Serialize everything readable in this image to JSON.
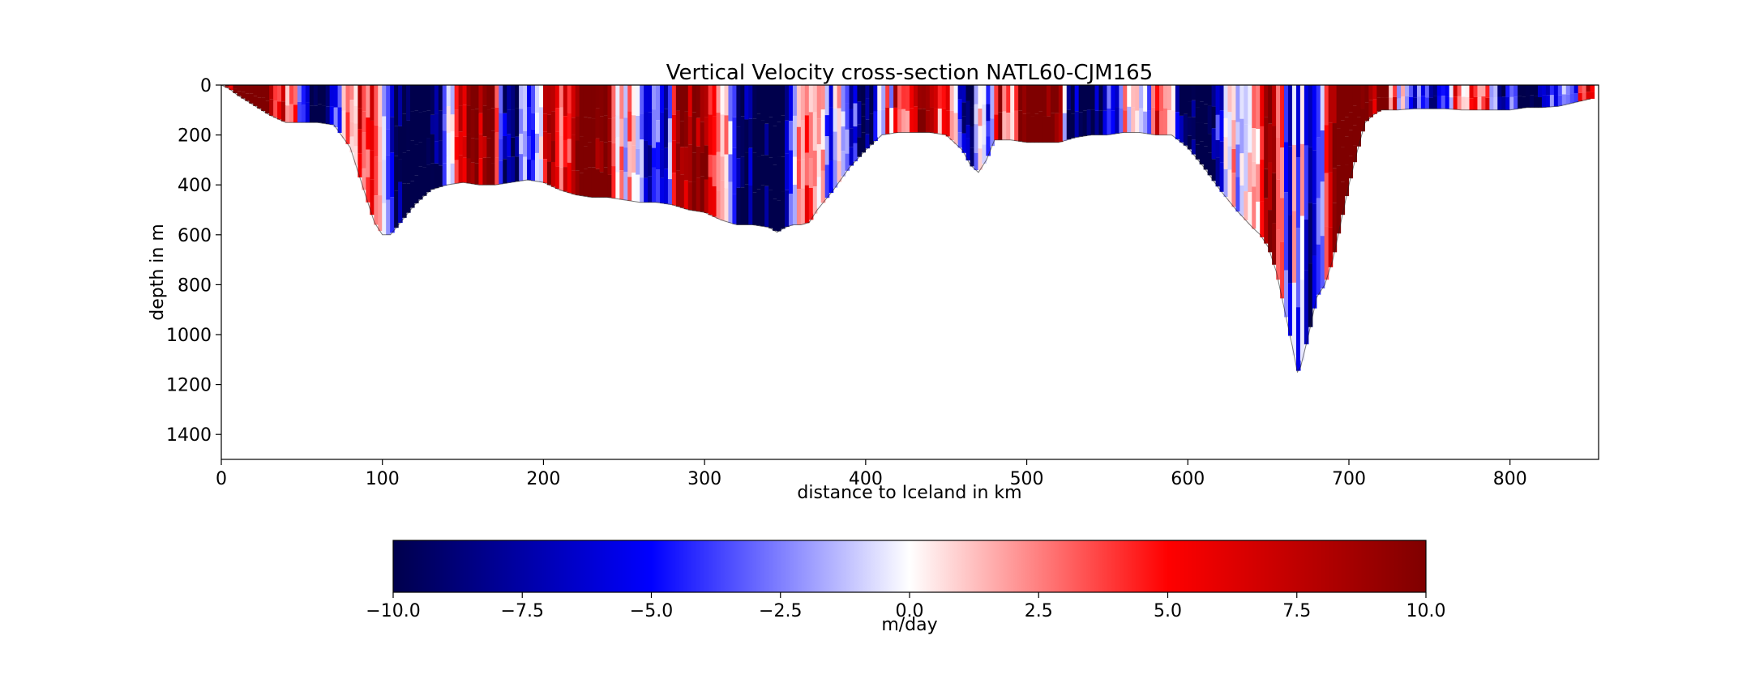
{
  "chart_data": {
    "type": "heatmap",
    "title": "Vertical Velocity cross-section NATL60-CJM165",
    "xlabel": "distance to Iceland in km",
    "ylabel": "depth in m",
    "xlim": [
      0,
      855
    ],
    "ylim": [
      1500,
      0
    ],
    "y_inverted": true,
    "x_ticks": [
      "0",
      "100",
      "200",
      "300",
      "400",
      "500",
      "600",
      "700",
      "800"
    ],
    "y_ticks": [
      "0",
      "200",
      "400",
      "600",
      "800",
      "1000",
      "1200",
      "1400"
    ],
    "grid": false,
    "colormap": "seismic",
    "color_stops": [
      "#00004c",
      "#0000ff",
      "#ffffff",
      "#ff0000",
      "#7f0000"
    ],
    "colorbar": {
      "label": "m/day",
      "range": [
        -10,
        10
      ],
      "ticks": [
        "−10.0",
        "−7.5",
        "−5.0",
        "−2.5",
        "0.0",
        "2.5",
        "5.0",
        "7.5",
        "10.0"
      ]
    },
    "bottom_depth_profile": {
      "distance_km": [
        0,
        5,
        10,
        20,
        30,
        40,
        50,
        60,
        70,
        80,
        85,
        90,
        95,
        100,
        105,
        110,
        115,
        120,
        130,
        140,
        150,
        160,
        170,
        180,
        190,
        200,
        210,
        220,
        230,
        240,
        250,
        260,
        270,
        280,
        290,
        300,
        310,
        320,
        330,
        340,
        345,
        350,
        355,
        360,
        365,
        370,
        380,
        390,
        400,
        410,
        420,
        430,
        440,
        450,
        460,
        465,
        470,
        475,
        480,
        490,
        500,
        510,
        520,
        530,
        540,
        550,
        560,
        570,
        580,
        590,
        600,
        610,
        620,
        630,
        640,
        645,
        650,
        655,
        660,
        665,
        668,
        670,
        675,
        680,
        685,
        690,
        695,
        700,
        705,
        710,
        715,
        720,
        730,
        740,
        750,
        760,
        770,
        780,
        790,
        800,
        810,
        820,
        830,
        840,
        850
      ],
      "depth_m": [
        0,
        15,
        40,
        80,
        120,
        150,
        150,
        150,
        160,
        250,
        350,
        450,
        550,
        600,
        600,
        560,
        520,
        480,
        420,
        400,
        390,
        400,
        400,
        390,
        380,
        390,
        420,
        440,
        450,
        450,
        460,
        470,
        470,
        480,
        500,
        510,
        540,
        560,
        560,
        570,
        590,
        570,
        560,
        560,
        550,
        500,
        420,
        330,
        260,
        200,
        190,
        190,
        190,
        200,
        260,
        320,
        350,
        300,
        220,
        220,
        230,
        230,
        230,
        210,
        200,
        200,
        190,
        190,
        200,
        200,
        250,
        330,
        420,
        500,
        570,
        600,
        650,
        750,
        900,
        1050,
        1150,
        1130,
        1000,
        850,
        800,
        700,
        550,
        400,
        270,
        150,
        120,
        100,
        100,
        95,
        95,
        95,
        100,
        100,
        100,
        100,
        90,
        90,
        85,
        70,
        55
      ]
    }
  }
}
